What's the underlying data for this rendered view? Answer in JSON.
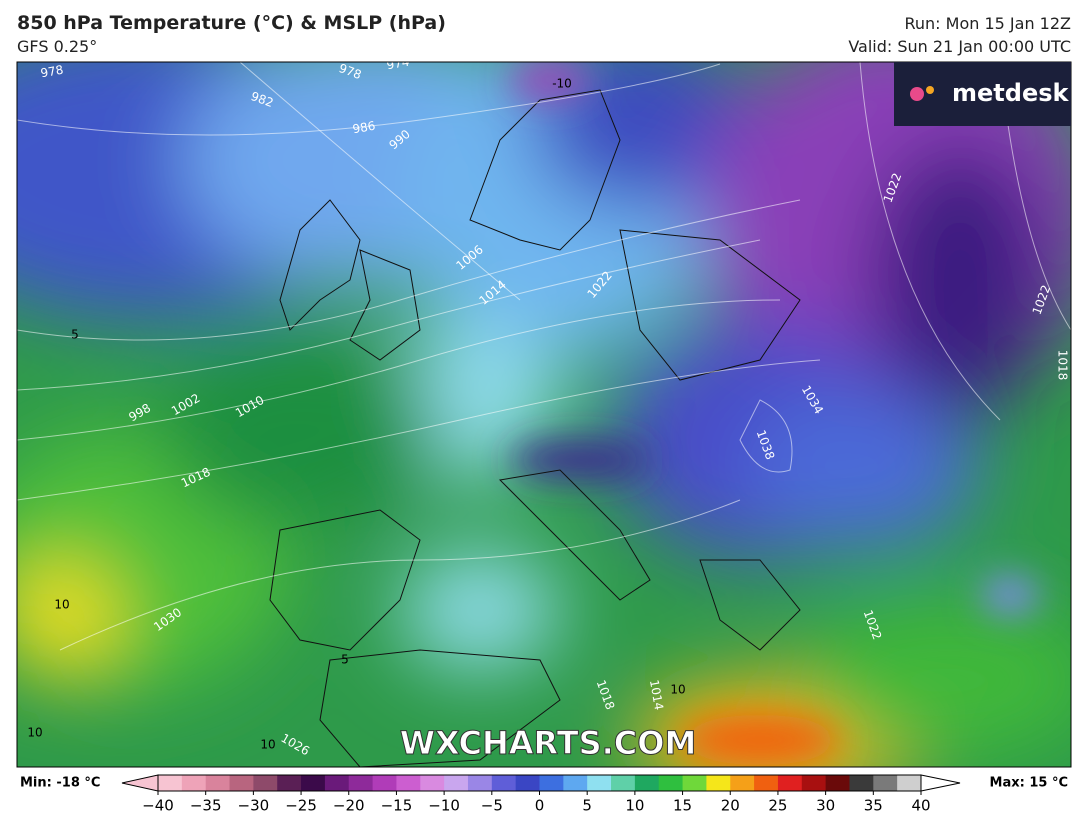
{
  "header": {
    "title": "850 hPa Temperature (°C) & MSLP (hPa)",
    "model": "GFS 0.25°",
    "run": "Run: Mon 15 Jan 12Z",
    "valid": "Valid: Sun 21 Jan 00:00 UTC"
  },
  "logo": "metdesk",
  "watermark": "WXCHARTS.COM",
  "map": {
    "isobar_labels": [
      978,
      978,
      974,
      982,
      986,
      990,
      1006,
      1014,
      1022,
      1022,
      1022,
      1018,
      1034,
      1038,
      998,
      1002,
      1010,
      1018,
      1030,
      1022,
      1018,
      1014,
      1026
    ],
    "temperature_labels": [
      -10,
      10,
      10,
      10,
      10,
      5,
      5
    ]
  },
  "colorbar": {
    "min_label": "Min: -18 °C",
    "max_label": "Max: 15 °C",
    "range": [
      -40,
      40
    ],
    "ticks": [
      {
        "value": -40,
        "label": "−40"
      },
      {
        "value": -35,
        "label": "−35"
      },
      {
        "value": -30,
        "label": "−30"
      },
      {
        "value": -25,
        "label": "−25"
      },
      {
        "value": -20,
        "label": "−20"
      },
      {
        "value": -15,
        "label": "−15"
      },
      {
        "value": -10,
        "label": "−10"
      },
      {
        "value": -5,
        "label": "−5"
      },
      0,
      5,
      10,
      15,
      20,
      25,
      30,
      35,
      40
    ],
    "colors": [
      "#f7c4d2",
      "#eea3b8",
      "#d9839c",
      "#b8657f",
      "#8e4a6a",
      "#5a1f55",
      "#3b0a4a",
      "#6a1a7a",
      "#8e2a9a",
      "#b03cb8",
      "#cc5ed0",
      "#d98ae0",
      "#c9a6ee",
      "#9a86e6",
      "#5f5ed8",
      "#3a46c4",
      "#3d6fe0",
      "#5ea8f0",
      "#8fe0f0",
      "#5fd0a8",
      "#1fa860",
      "#2fbf3f",
      "#6fd83a",
      "#f5e61a",
      "#f5a018",
      "#f06010",
      "#e02020",
      "#a81010",
      "#6a0a0a",
      "#3a3a3a",
      "#7a7a7a",
      "#cfcfcf"
    ]
  }
}
